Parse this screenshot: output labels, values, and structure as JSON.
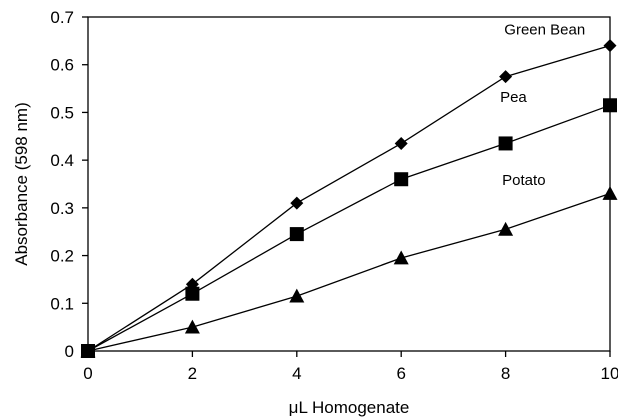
{
  "chart_data": {
    "type": "line",
    "xlabel": "μL Homogenate",
    "ylabel": "Absorbance (598 nm)",
    "xlim": [
      0,
      10
    ],
    "ylim": [
      0,
      0.7
    ],
    "xticks": [
      "0",
      "2",
      "4",
      "6",
      "8",
      "10"
    ],
    "yticks": [
      "0",
      "0.1",
      "0.2",
      "0.3",
      "0.4",
      "0.5",
      "0.6",
      "0.7"
    ],
    "grid": false,
    "legend": "none",
    "x": [
      0,
      2,
      4,
      6,
      8,
      10
    ],
    "series": [
      {
        "name": "Green Bean",
        "marker": "diamond",
        "values": [
          0,
          0.14,
          0.31,
          0.435,
          0.575,
          0.64
        ]
      },
      {
        "name": "Pea",
        "marker": "square",
        "values": [
          0,
          0.12,
          0.245,
          0.36,
          0.435,
          0.515
        ]
      },
      {
        "name": "Potato",
        "marker": "triangle",
        "values": [
          0,
          0.05,
          0.115,
          0.195,
          0.255,
          0.33
        ]
      }
    ],
    "annotations": [
      {
        "text": "Green Bean",
        "x": 8.75,
        "y": 0.663
      },
      {
        "text": "Pea",
        "x": 8.15,
        "y": 0.522
      },
      {
        "text": "Potato",
        "x": 8.35,
        "y": 0.348
      }
    ],
    "colors": {
      "line": "#000000",
      "marker": "#000000"
    }
  }
}
